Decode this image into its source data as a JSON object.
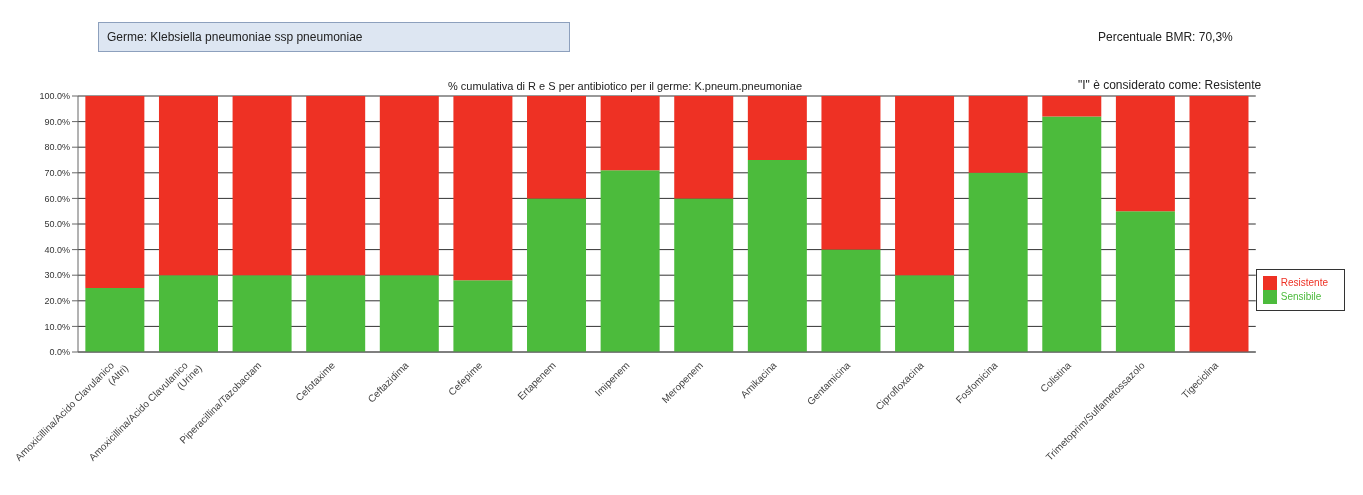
{
  "chart_data": {
    "type": "bar",
    "stacked": true,
    "title": "% cumulativa di R e S per antibiotico per il germe: K.pneum.pneumoniae",
    "annotations": [
      "Germe: Klebsiella pneumoniae ssp pneumoniae",
      "Percentuale BMR: 70,3%",
      "\"I\" è considerato come: Resistente"
    ],
    "categories": [
      "Amoxicillina/Acido Clavulanico (Altri)",
      "Amoxicillina/Acido Clavulanico (Urine)",
      "Piperacillina/Tazobactam",
      "Cefotaxime",
      "Ceftazidima",
      "Cefepime",
      "Ertapenem",
      "Imipenem",
      "Meropenem",
      "Amikacina",
      "Gentamicina",
      "Ciprofloxacina",
      "Fosfomicina",
      "Colistina",
      "Trimetoprim/Sulfametossazolo",
      "Tigeciclina"
    ],
    "series": [
      {
        "name": "Sensibile",
        "color": "#4cbb3c",
        "values": [
          25,
          30,
          30,
          30,
          30,
          28,
          60,
          71,
          60,
          75,
          40,
          30,
          70,
          92,
          55,
          0
        ]
      },
      {
        "name": "Resistente",
        "color": "#ee3124",
        "values": [
          75,
          70,
          70,
          70,
          70,
          72,
          40,
          29,
          40,
          25,
          60,
          70,
          30,
          8,
          45,
          100
        ]
      }
    ],
    "ylim": [
      0,
      100
    ],
    "yticks": [
      {
        "value": 0,
        "label": "0.0%"
      },
      {
        "value": 10,
        "label": "10.0%"
      },
      {
        "value": 20,
        "label": "20.0%"
      },
      {
        "value": 30,
        "label": "30.0%"
      },
      {
        "value": 40,
        "label": "40.0%"
      },
      {
        "value": 50,
        "label": "50.0%"
      },
      {
        "value": 60,
        "label": "60.0%"
      },
      {
        "value": 70,
        "label": "70.0%"
      },
      {
        "value": 80,
        "label": "80.0%"
      },
      {
        "value": 90,
        "label": "90.0%"
      },
      {
        "value": 100,
        "label": "100.0%"
      }
    ],
    "grid": "y",
    "legend": "right"
  }
}
